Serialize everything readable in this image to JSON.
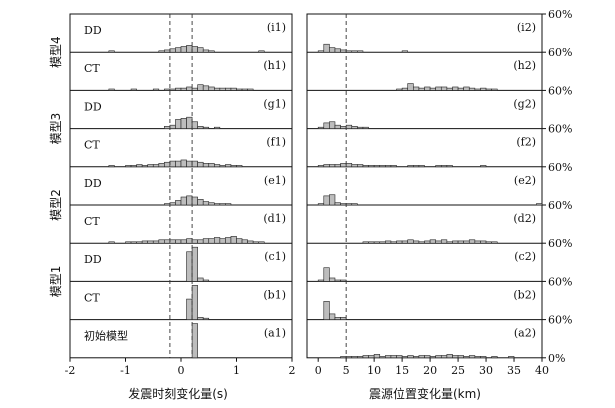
{
  "chart_data": [
    {
      "type": "bar",
      "title": "",
      "xlabel": "发震时刻变化量(s)",
      "ylabel": "",
      "xlim": [
        -2,
        2
      ],
      "xticks": [
        "-2",
        "-1",
        "0",
        "1",
        "2"
      ],
      "bin_width": 0.1,
      "reference_lines_x": [
        -0.2,
        0.2
      ],
      "panels": [
        {
          "label": "(i1)",
          "name": "DD",
          "bins_start": -1.3,
          "values": [
            1,
            0,
            0,
            0,
            0,
            0,
            0,
            0,
            0,
            1,
            2,
            3,
            4,
            5,
            6,
            5,
            4,
            2,
            1,
            0,
            0,
            0,
            0,
            0,
            0,
            0,
            0,
            1
          ]
        },
        {
          "label": "(h1)",
          "name": "CT",
          "bins_start": -1.3,
          "values": [
            1,
            0,
            0,
            0,
            1,
            0,
            0,
            0,
            1,
            0,
            1,
            1,
            2,
            2,
            3,
            2,
            5,
            4,
            3,
            2,
            2,
            2,
            2,
            1,
            1,
            1,
            0,
            0
          ]
        },
        {
          "label": "(g1)",
          "name": "DD",
          "bins_start": -1.3,
          "values": [
            0,
            0,
            0,
            0,
            0,
            0,
            0,
            0,
            0,
            0,
            2,
            3,
            8,
            9,
            10,
            6,
            2,
            1,
            0,
            1,
            0,
            0,
            0,
            0,
            0,
            0,
            0,
            0
          ]
        },
        {
          "label": "(f1)",
          "name": "CT",
          "bins_start": -1.3,
          "values": [
            1,
            0,
            0,
            1,
            1,
            2,
            1,
            2,
            2,
            3,
            4,
            5,
            5,
            6,
            5,
            5,
            4,
            3,
            3,
            2,
            1,
            2,
            1,
            1,
            0,
            0,
            0,
            0
          ]
        },
        {
          "label": "(e1)",
          "name": "DD",
          "bins_start": -1.3,
          "values": [
            0,
            0,
            0,
            0,
            0,
            0,
            0,
            0,
            0,
            0,
            1,
            2,
            4,
            7,
            8,
            7,
            5,
            3,
            2,
            1,
            1,
            1,
            0,
            0,
            0,
            0,
            0,
            0
          ]
        },
        {
          "label": "(d1)",
          "name": "CT",
          "bins_start": -1.3,
          "values": [
            1,
            0,
            0,
            1,
            1,
            1,
            2,
            2,
            2,
            3,
            3,
            3,
            3,
            3,
            4,
            3,
            3,
            4,
            4,
            5,
            4,
            5,
            6,
            4,
            3,
            2,
            1,
            1
          ]
        },
        {
          "label": "(c1)",
          "name": "DD",
          "bins_start": -1.3,
          "values": [
            0,
            0,
            0,
            0,
            0,
            0,
            0,
            0,
            0,
            0,
            0,
            0,
            0,
            0,
            26,
            30,
            3,
            1,
            0,
            0,
            0,
            0,
            0,
            0,
            0,
            0,
            0,
            0
          ]
        },
        {
          "label": "(b1)",
          "name": "CT",
          "bins_start": -1.3,
          "values": [
            0,
            0,
            0,
            0,
            0,
            0,
            0,
            0,
            0,
            0,
            0,
            0,
            0,
            0,
            18,
            30,
            2,
            1,
            0,
            0,
            0,
            0,
            0,
            0,
            0,
            0,
            0,
            0
          ]
        },
        {
          "label": "(a1)",
          "name": "初始模型",
          "bins_start": -1.3,
          "values": [
            0,
            0,
            0,
            0,
            0,
            0,
            0,
            0,
            0,
            0,
            0,
            0,
            0,
            0,
            0,
            30,
            0,
            0,
            0,
            0,
            0,
            0,
            0,
            0,
            0,
            0,
            0,
            0
          ]
        }
      ]
    },
    {
      "type": "bar",
      "title": "",
      "xlabel": "震源位置变化量(km)",
      "ylabel": "",
      "xlim": [
        -2,
        40
      ],
      "xticks": [
        "0",
        "5",
        "10",
        "15",
        "20",
        "25",
        "30",
        "35",
        "40"
      ],
      "bin_width": 1,
      "reference_lines_x": [
        5
      ],
      "right_axis_ticks": [
        "60%",
        "60%",
        "60%",
        "60%",
        "60%",
        "60%",
        "60%",
        "60%",
        "60%",
        "0%"
      ],
      "panels": [
        {
          "label": "(i2)",
          "bins_start": 0,
          "values": [
            1,
            7,
            4,
            3,
            2,
            1,
            1,
            1,
            0,
            0,
            0,
            0,
            0,
            0,
            0,
            1,
            0,
            0,
            0,
            0,
            0,
            0,
            0,
            0,
            0,
            0,
            0,
            0,
            0,
            0,
            0,
            0,
            0,
            0,
            0,
            0,
            0,
            0,
            0,
            0
          ]
        },
        {
          "label": "(h2)",
          "bins_start": 0,
          "values": [
            0,
            0,
            0,
            0,
            0,
            0,
            0,
            0,
            0,
            0,
            0,
            0,
            0,
            0,
            1,
            2,
            6,
            3,
            2,
            3,
            2,
            3,
            3,
            2,
            3,
            2,
            3,
            2,
            1,
            2,
            1,
            1,
            0,
            0,
            0,
            0,
            0,
            0,
            0,
            0
          ]
        },
        {
          "label": "(g2)",
          "bins_start": 0,
          "values": [
            1,
            5,
            6,
            3,
            2,
            3,
            2,
            1,
            1,
            0,
            0,
            0,
            0,
            0,
            0,
            0,
            0,
            0,
            0,
            0,
            0,
            0,
            0,
            0,
            0,
            0,
            0,
            0,
            0,
            0,
            0,
            0,
            0,
            0,
            0,
            0,
            0,
            0,
            0,
            0
          ]
        },
        {
          "label": "(f2)",
          "bins_start": 0,
          "values": [
            1,
            2,
            2,
            2,
            3,
            3,
            2,
            2,
            1,
            1,
            1,
            1,
            1,
            1,
            0,
            0,
            1,
            1,
            1,
            0,
            0,
            1,
            1,
            1,
            0,
            0,
            0,
            0,
            0,
            1,
            0,
            0,
            0,
            0,
            0,
            0,
            0,
            0,
            0,
            0
          ]
        },
        {
          "label": "(e2)",
          "bins_start": 0,
          "values": [
            1,
            8,
            9,
            2,
            1,
            1,
            1,
            0,
            0,
            0,
            0,
            0,
            0,
            0,
            0,
            0,
            0,
            0,
            0,
            0,
            0,
            0,
            0,
            0,
            0,
            0,
            0,
            0,
            0,
            0,
            0,
            0,
            0,
            0,
            0,
            0,
            0,
            0,
            0,
            1
          ]
        },
        {
          "label": "(d2)",
          "bins_start": 0,
          "values": [
            0,
            0,
            0,
            0,
            0,
            0,
            0,
            0,
            1,
            1,
            1,
            1,
            2,
            1,
            2,
            2,
            3,
            2,
            1,
            2,
            3,
            2,
            3,
            1,
            2,
            2,
            2,
            3,
            2,
            2,
            1,
            1,
            0,
            0,
            0,
            0,
            0,
            0,
            0,
            0
          ]
        },
        {
          "label": "(c2)",
          "bins_start": 0,
          "values": [
            1,
            12,
            3,
            1,
            1,
            0,
            0,
            0,
            0,
            0,
            0,
            0,
            0,
            0,
            0,
            0,
            0,
            0,
            0,
            0,
            0,
            0,
            0,
            0,
            0,
            0,
            0,
            0,
            0,
            0,
            0,
            0,
            0,
            0,
            0,
            0,
            0,
            0,
            0,
            0
          ]
        },
        {
          "label": "(b2)",
          "bins_start": 0,
          "values": [
            0,
            16,
            5,
            2,
            2,
            0,
            0,
            0,
            0,
            0,
            0,
            0,
            0,
            0,
            0,
            0,
            0,
            0,
            0,
            0,
            0,
            0,
            0,
            0,
            0,
            0,
            0,
            0,
            0,
            0,
            0,
            0,
            0,
            0,
            0,
            0,
            0,
            0,
            0,
            0
          ]
        },
        {
          "label": "(a2)",
          "bins_start": 0,
          "values": [
            0,
            0,
            0,
            0,
            1,
            1,
            1,
            1,
            2,
            2,
            3,
            1,
            2,
            2,
            2,
            1,
            2,
            1,
            2,
            2,
            1,
            2,
            2,
            3,
            2,
            2,
            1,
            2,
            1,
            1,
            0,
            1,
            0,
            0,
            1,
            0,
            0,
            0,
            0,
            0
          ]
        }
      ]
    }
  ],
  "model_labels": [
    "模型4",
    "模型3",
    "模型2",
    "模型1"
  ],
  "colors": {
    "bar_fill": "#bdbdbd",
    "bar_stroke": "#222222",
    "axis": "#111111",
    "ref_line": "#333333"
  }
}
